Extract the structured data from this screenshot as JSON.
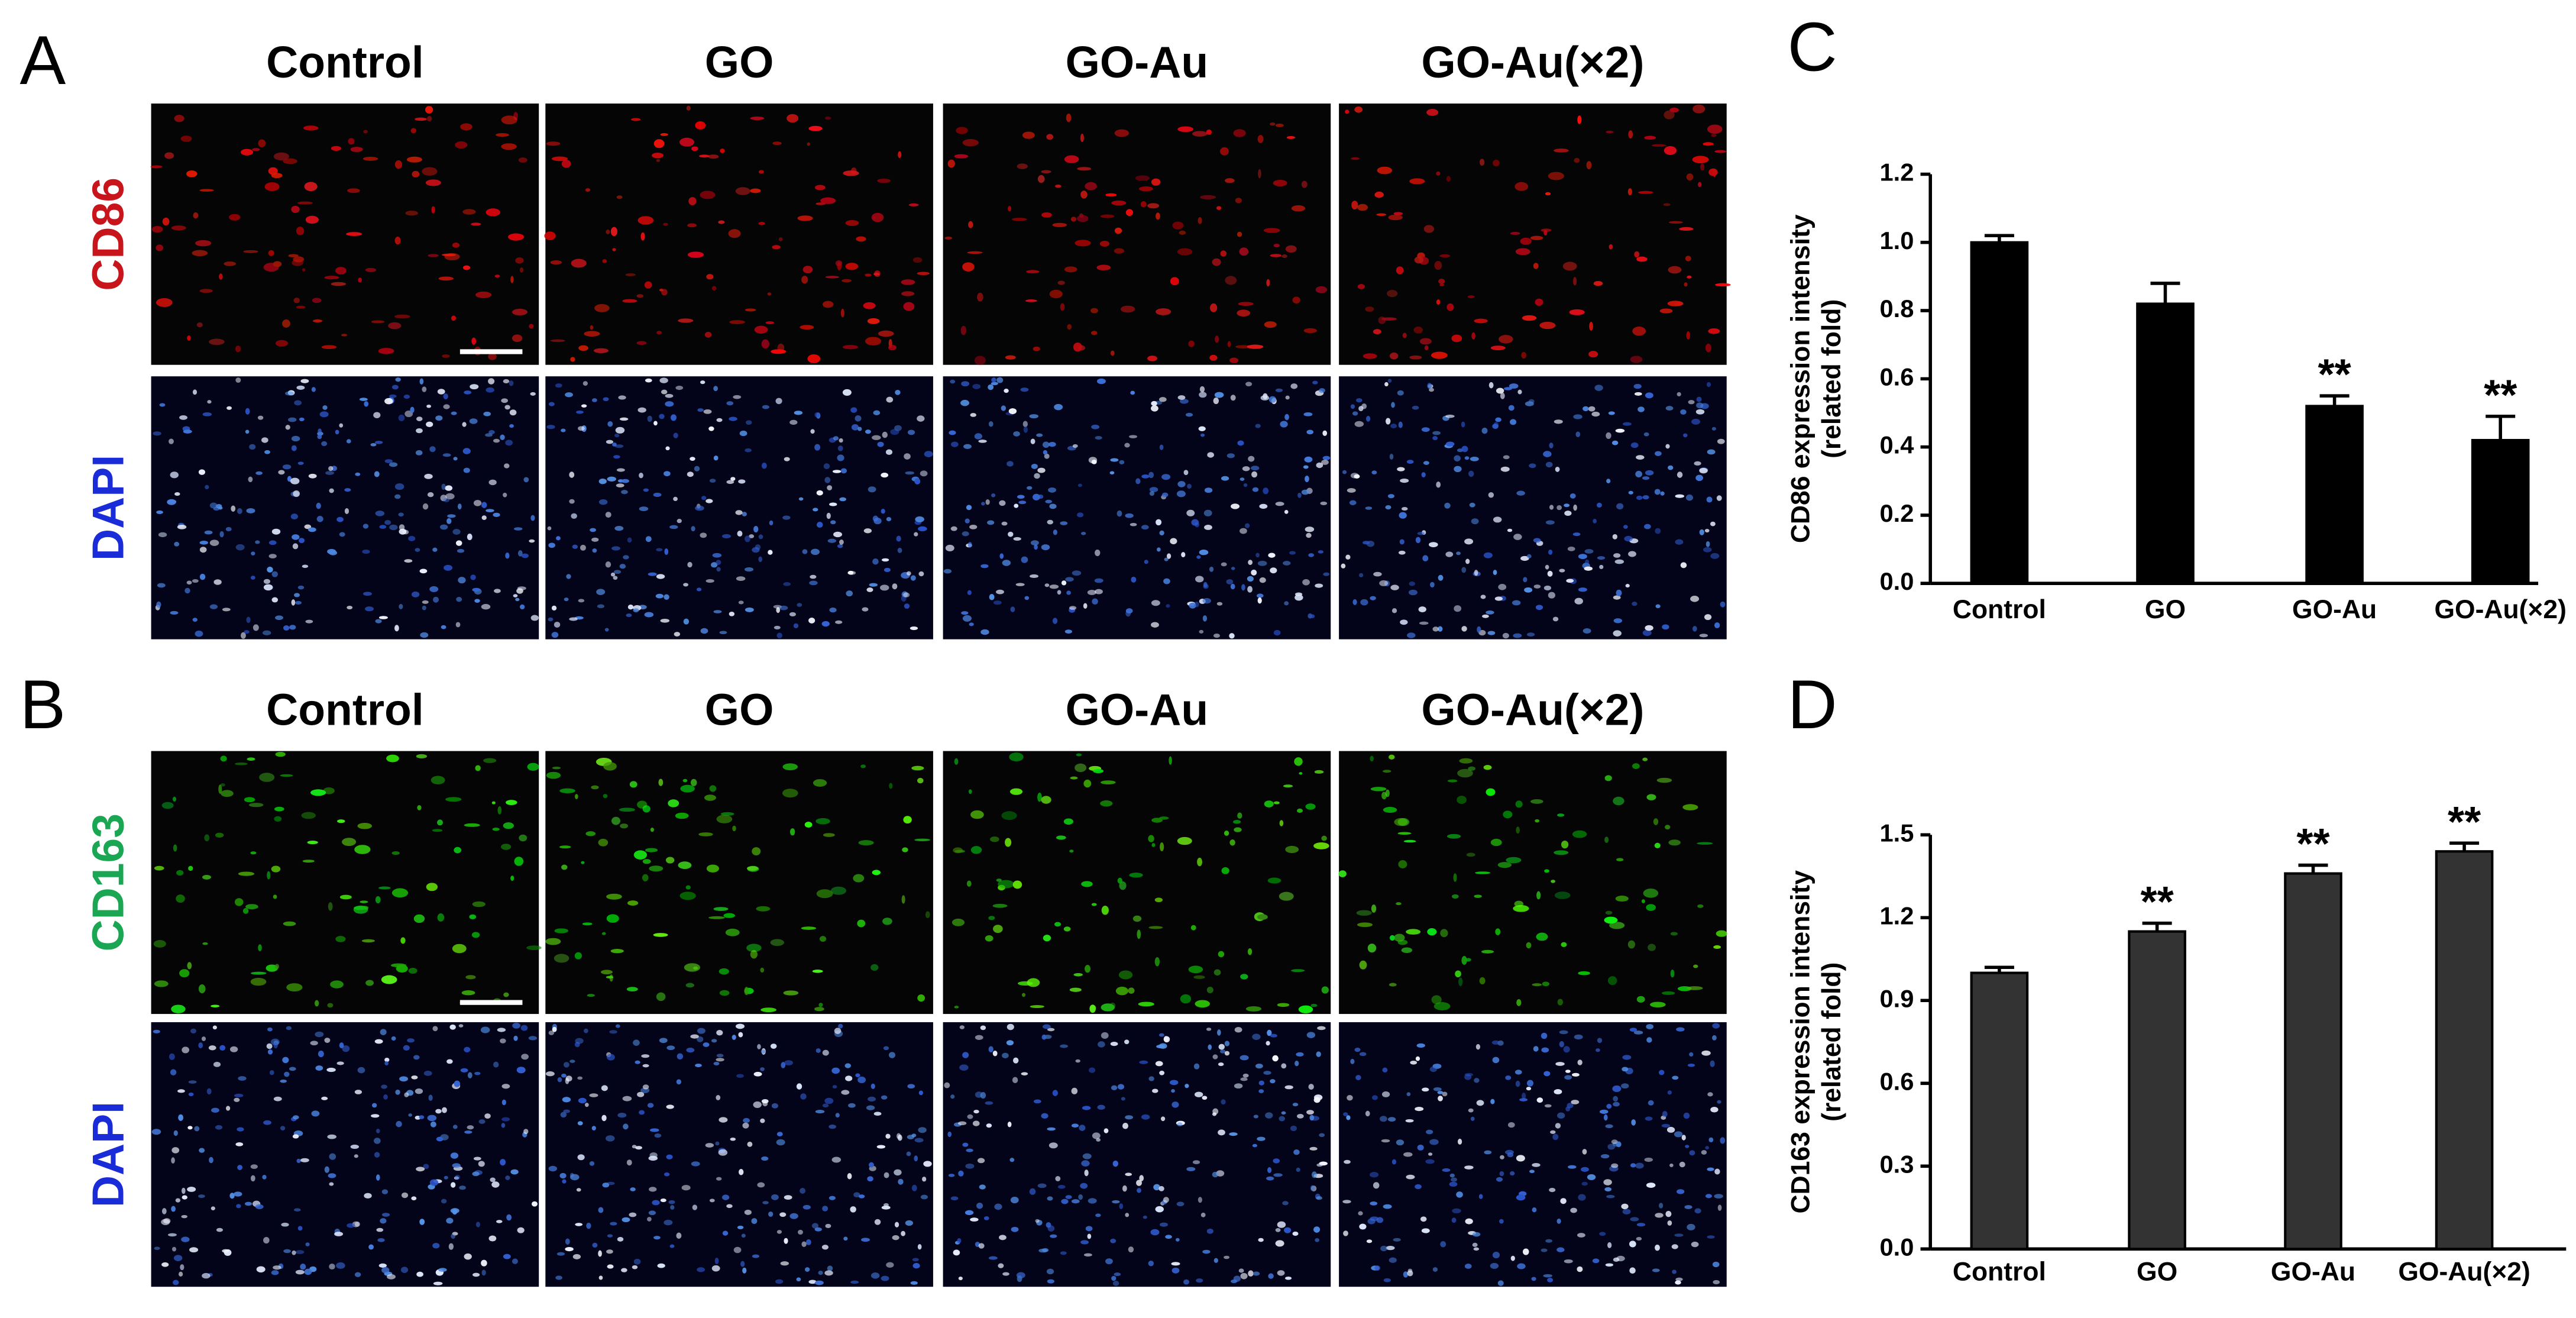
{
  "panels": [
    {
      "label": "A",
      "columns": [
        "Control",
        "GO",
        "GO-Au",
        "GO-Au(×2)"
      ],
      "rows": [
        "CD86",
        "DAPI"
      ]
    },
    {
      "label": "B",
      "columns": [
        "Control",
        "GO",
        "GO-Au",
        "GO-Au(×2)"
      ],
      "rows": [
        "CD163",
        "DAPI"
      ]
    }
  ],
  "chart_data": [
    {
      "type": "bar",
      "panel_label": "C",
      "ylabel": [
        "CD86 expression intensity",
        "(related fold)"
      ],
      "categories": [
        "Control",
        "GO",
        "GO-Au",
        "GO-Au(×2)"
      ],
      "values": [
        1.0,
        0.82,
        0.52,
        0.42
      ],
      "errors": [
        0.02,
        0.06,
        0.03,
        0.07
      ],
      "significance": [
        null,
        null,
        "**",
        "**"
      ],
      "color": "#000000",
      "ylim": [
        0,
        1.2
      ],
      "yticks": [
        {
          "value": 0,
          "label": "0.0"
        },
        0.2,
        0.4,
        0.6,
        0.8,
        {
          "value": 1,
          "label": "1.0"
        },
        1.2
      ]
    },
    {
      "type": "bar",
      "panel_label": "D",
      "ylabel": [
        "CD163 expression intensity",
        "(related fold)"
      ],
      "categories": [
        "Control",
        "GO",
        "GO-Au",
        "GO-Au(×2)"
      ],
      "values": [
        1.0,
        1.15,
        1.36,
        1.44
      ],
      "errors": [
        0.02,
        0.03,
        0.03,
        0.03
      ],
      "significance": [
        null,
        "**",
        "**",
        "**"
      ],
      "color": "#333333",
      "ylim": [
        0,
        1.5
      ],
      "yticks": [
        {
          "value": 0,
          "label": "0.0"
        },
        0.3,
        0.6,
        0.9,
        1.2,
        1.5
      ]
    }
  ]
}
